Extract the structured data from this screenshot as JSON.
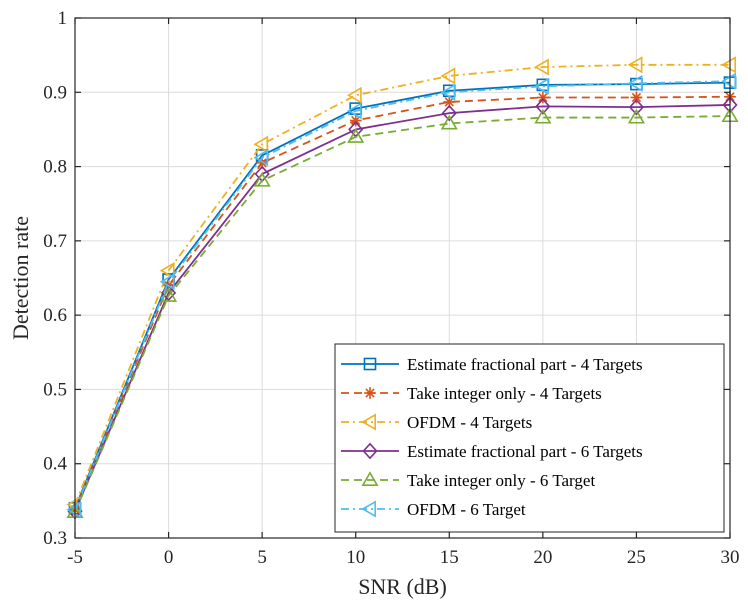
{
  "chart_data": {
    "type": "line",
    "title": "",
    "xlabel": "SNR (dB)",
    "ylabel": "Detection rate",
    "xlim": [
      -5,
      30
    ],
    "ylim": [
      0.3,
      1
    ],
    "xticks": [
      -5,
      0,
      5,
      10,
      15,
      20,
      25,
      30
    ],
    "xtick_labels": [
      "-5",
      "0",
      "5",
      "10",
      "15",
      "20",
      "25",
      "30"
    ],
    "yticks": [
      0.3,
      0.4,
      0.5,
      0.6,
      0.7,
      0.8,
      0.9,
      1
    ],
    "ytick_labels": [
      "0.3",
      "0.4",
      "0.5",
      "0.6",
      "0.7",
      "0.8",
      "0.9",
      "1"
    ],
    "grid": true,
    "legend_position": "bottom-right",
    "x": [
      -5,
      0,
      5,
      10,
      15,
      20,
      25,
      30
    ],
    "series": [
      {
        "name": "Estimate fractional part - 4 Targets",
        "values": [
          0.34,
          0.648,
          0.815,
          0.878,
          0.902,
          0.91,
          0.911,
          0.913
        ],
        "color": "#0072BD",
        "dash": "solid",
        "marker": "square"
      },
      {
        "name": "Take integer only - 4 Targets",
        "values": [
          0.338,
          0.64,
          0.805,
          0.862,
          0.887,
          0.893,
          0.893,
          0.894
        ],
        "color": "#D95319",
        "dash": "dashed",
        "marker": "asterisk"
      },
      {
        "name": "OFDM - 4 Targets",
        "values": [
          0.345,
          0.66,
          0.83,
          0.896,
          0.922,
          0.934,
          0.937,
          0.937
        ],
        "color": "#EDB120",
        "dash": "dashdot",
        "marker": "triangle-left"
      },
      {
        "name": "Estimate fractional part - 6 Targets",
        "values": [
          0.336,
          0.63,
          0.79,
          0.85,
          0.872,
          0.881,
          0.88,
          0.883
        ],
        "color": "#7E2F8E",
        "dash": "solid",
        "marker": "diamond"
      },
      {
        "name": "Take integer only - 6 Target",
        "values": [
          0.335,
          0.626,
          0.781,
          0.84,
          0.858,
          0.866,
          0.866,
          0.868
        ],
        "color": "#77AC30",
        "dash": "dashed",
        "marker": "triangle-up"
      },
      {
        "name": "OFDM - 6 Target",
        "values": [
          0.338,
          0.645,
          0.812,
          0.875,
          0.9,
          0.908,
          0.912,
          0.915
        ],
        "color": "#4DBEEE",
        "dash": "dashdot",
        "marker": "triangle-left"
      }
    ]
  }
}
